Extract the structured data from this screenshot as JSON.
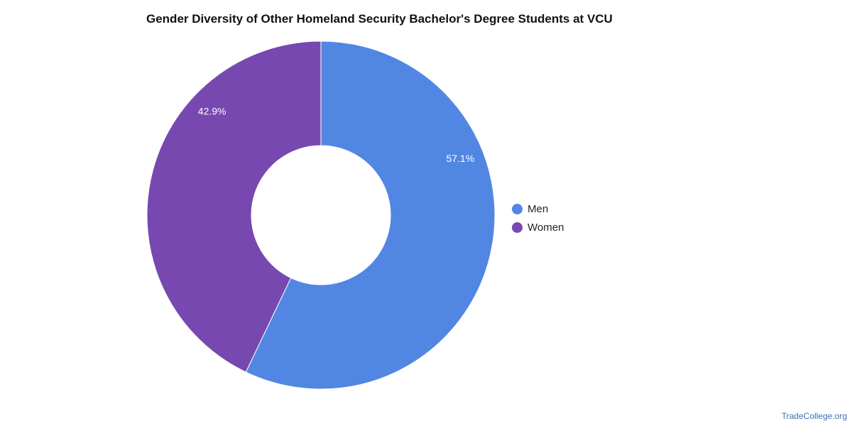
{
  "title": "Gender Diversity of Other Homeland Security Bachelor's Degree Students at VCU",
  "watermark": "TradeCollege.org",
  "chart_data": {
    "type": "pie",
    "variant": "donut",
    "title": "Gender Diversity of Other Homeland Security Bachelor's Degree Students at VCU",
    "legend_position": "right",
    "slices": [
      {
        "label": "Men",
        "value": 57.1,
        "display": "57.1%",
        "color": "#5286e3"
      },
      {
        "label": "Women",
        "value": 42.9,
        "display": "42.9%",
        "color": "#7748b0"
      }
    ]
  }
}
